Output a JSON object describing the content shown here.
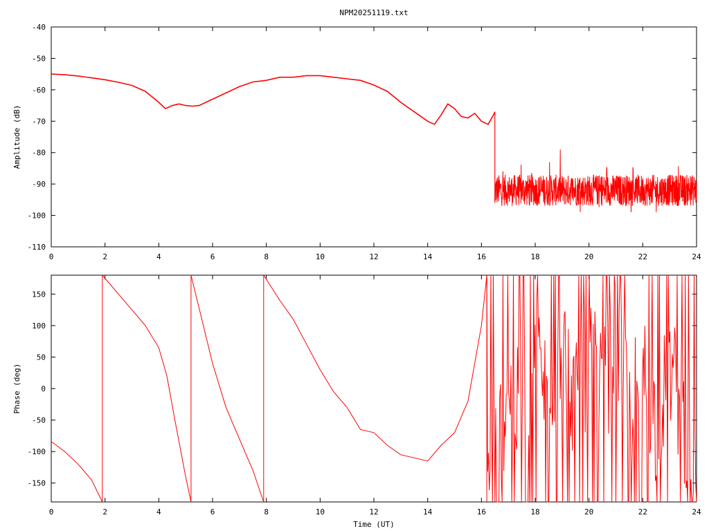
{
  "title": "NPM20251119.txt",
  "colors": {
    "series": "#ff0000",
    "axes": "#000000",
    "background": "#ffffff"
  },
  "chart_data": [
    {
      "type": "line",
      "title": "NPM20251119.txt",
      "xlabel": "",
      "ylabel": "Amplitude (dB)",
      "xlim": [
        0,
        24
      ],
      "ylim": [
        -110,
        -40
      ],
      "xticks": [
        "0",
        "2",
        "4",
        "6",
        "8",
        "10",
        "12",
        "14",
        "16",
        "18",
        "20",
        "22",
        "24"
      ],
      "yticks": [
        "-40",
        "-50",
        "-60",
        "-70",
        "-80",
        "-90",
        "-100",
        "-110"
      ],
      "grid": false,
      "legend": "none",
      "series": [
        {
          "x": [
            0,
            0.5,
            1,
            1.5,
            2,
            2.5,
            3,
            3.5,
            4,
            4.25,
            4.5,
            4.75,
            5,
            5.25,
            5.5,
            6,
            6.5,
            7,
            7.5,
            8,
            8.5,
            9,
            9.5,
            10,
            10.5,
            11,
            11.5,
            12,
            12.5,
            13,
            13.5,
            14,
            14.25,
            14.5,
            14.75,
            15,
            15.25,
            15.5,
            15.75,
            16,
            16.25,
            16.45,
            16.5
          ],
          "values": [
            -55,
            -55.2,
            -55.6,
            -56.2,
            -56.8,
            -57.6,
            -58.6,
            -60.5,
            -64,
            -66,
            -65,
            -64.5,
            -65,
            -65.2,
            -65,
            -63,
            -61,
            -59,
            -57.5,
            -57,
            -56,
            -56,
            -55.5,
            -55.5,
            -56,
            -56.5,
            -57,
            -58.5,
            -60.5,
            -64,
            -67,
            -70,
            -71,
            -68,
            -64.5,
            -66,
            -68.5,
            -69,
            -67.5,
            -70,
            -71,
            -68,
            -67
          ]
        },
        {
          "x": [
            16.5,
            17,
            17.5,
            18,
            18.5,
            19,
            19.5,
            20,
            20.5,
            21,
            21.5,
            22,
            22.5,
            23,
            23.5,
            24
          ],
          "values": [
            -92,
            -92,
            -92,
            -92,
            -92,
            -92,
            -92,
            -92,
            -92,
            -92,
            -92,
            -92,
            -92,
            -92,
            -92,
            -92
          ],
          "noise_band": [
            -99,
            -79
          ]
        }
      ]
    },
    {
      "type": "line",
      "title": "",
      "xlabel": "Time (UT)",
      "ylabel": "Phase (deg)",
      "xlim": [
        0,
        24
      ],
      "ylim": [
        -180,
        180
      ],
      "xticks": [
        "0",
        "2",
        "4",
        "6",
        "8",
        "10",
        "12",
        "14",
        "16",
        "18",
        "20",
        "22",
        "24"
      ],
      "yticks": [
        "150",
        "100",
        "50",
        "0",
        "-50",
        "-100",
        "-150"
      ],
      "grid": false,
      "legend": "none",
      "series": [
        {
          "x": [
            0,
            0.5,
            1,
            1.5,
            1.9
          ],
          "values": [
            -84,
            -100,
            -120,
            -145,
            -180
          ]
        },
        {
          "x": [
            1.9,
            2.5,
            3,
            3.5,
            4,
            4.3,
            4.6,
            5,
            5.2
          ],
          "values": [
            180,
            150,
            125,
            100,
            65,
            20,
            -50,
            -140,
            -180
          ]
        },
        {
          "x": [
            5.2,
            5.6,
            6,
            6.5,
            7,
            7.5,
            7.9
          ],
          "values": [
            180,
            110,
            40,
            -30,
            -80,
            -130,
            -180
          ]
        },
        {
          "x": [
            7.9,
            8.5,
            9,
            9.5,
            10,
            10.5,
            11,
            11.5,
            12,
            12.5,
            13,
            13.5,
            14,
            14.5,
            15,
            15.5,
            16,
            16.2
          ],
          "values": [
            180,
            140,
            110,
            70,
            30,
            -5,
            -30,
            -65,
            -70,
            -90,
            -105,
            -110,
            -115,
            -90,
            -70,
            -20,
            100,
            180
          ]
        },
        {
          "x": [
            16.2,
            16.5,
            17,
            17.5,
            18,
            18.5,
            19,
            19.5,
            20,
            20.5,
            21,
            21.5,
            22,
            22.5,
            23,
            23.5,
            24
          ],
          "values": [
            -180,
            -100,
            0,
            -50,
            60,
            -20,
            80,
            -30,
            50,
            -10,
            70,
            -40,
            40,
            -60,
            30,
            -40,
            -160
          ],
          "noise_band": [
            -180,
            180
          ]
        }
      ]
    }
  ]
}
